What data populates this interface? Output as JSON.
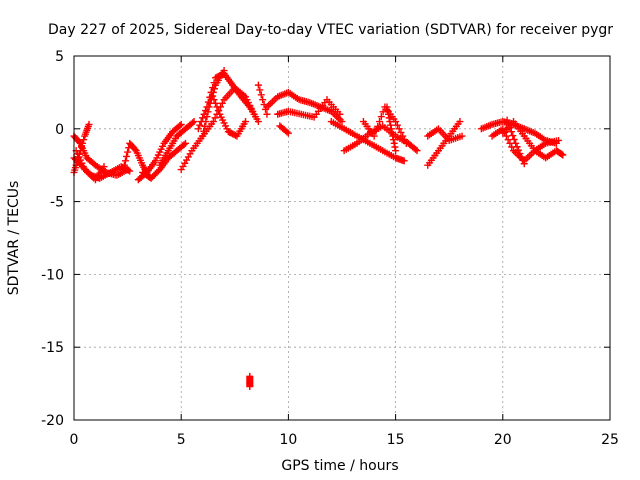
{
  "chart_data": {
    "type": "scatter",
    "title": "Day 227 of 2025, Sidereal Day-to-day VTEC variation (SDTVAR) for receiver pygr",
    "xlabel": "GPS time / hours",
    "ylabel": "SDTVAR / TECUs",
    "xlim": [
      0,
      25
    ],
    "ylim": [
      -20,
      5
    ],
    "xticks": [
      0,
      5,
      10,
      15,
      20,
      25
    ],
    "yticks": [
      5,
      0,
      -5,
      -10,
      -15,
      -20
    ],
    "grid": true,
    "marker": "+",
    "color": "#ff0000",
    "series": [
      {
        "name": "SDTVAR",
        "segments": [
          {
            "x": [
              0.0,
              0.3,
              0.6,
              1.0,
              1.5,
              2.0,
              2.5
            ],
            "y": [
              -0.5,
              -1.0,
              -2.0,
              -2.5,
              -3.0,
              -3.2,
              -2.8
            ]
          },
          {
            "x": [
              0.0,
              0.4,
              0.8,
              1.2,
              1.7,
              2.2,
              2.6
            ],
            "y": [
              -2.0,
              -2.6,
              -3.2,
              -3.4,
              -3.0,
              -2.6,
              -2.9
            ]
          },
          {
            "x": [
              0.0,
              0.2,
              0.5,
              0.7
            ],
            "y": [
              -3.0,
              -2.0,
              -0.5,
              0.3
            ]
          },
          {
            "x": [
              0.1,
              0.5,
              1.0,
              1.4
            ],
            "y": [
              -1.5,
              -2.8,
              -3.5,
              -2.6
            ]
          },
          {
            "x": [
              2.3,
              2.6,
              2.9,
              3.2,
              3.5
            ],
            "y": [
              -2.8,
              -1.0,
              -1.5,
              -2.5,
              -3.3
            ]
          },
          {
            "x": [
              3.0,
              3.4,
              3.8,
              4.2,
              4.6,
              5.0
            ],
            "y": [
              -3.5,
              -3.0,
              -2.2,
              -1.0,
              -0.2,
              0.3
            ]
          },
          {
            "x": [
              3.2,
              3.6,
              4.0,
              4.4,
              4.8,
              5.2
            ],
            "y": [
              -3.0,
              -3.4,
              -2.8,
              -2.0,
              -1.5,
              -1.0
            ]
          },
          {
            "x": [
              4.0,
              4.4,
              4.8,
              5.2,
              5.6
            ],
            "y": [
              -2.5,
              -1.5,
              -0.5,
              0.0,
              0.5
            ]
          },
          {
            "x": [
              5.0,
              5.5,
              6.0,
              6.3,
              6.6,
              7.0
            ],
            "y": [
              -2.8,
              -1.5,
              -0.5,
              1.5,
              3.0,
              4.0
            ]
          },
          {
            "x": [
              5.8,
              6.2,
              6.6,
              7.0,
              7.4,
              7.8,
              8.2,
              8.6
            ],
            "y": [
              0.0,
              1.5,
              3.5,
              3.8,
              3.0,
              2.2,
              1.5,
              0.5
            ]
          },
          {
            "x": [
              6.0,
              6.5,
              7.0,
              7.5,
              8.0,
              8.4
            ],
            "y": [
              -0.5,
              0.5,
              2.0,
              2.8,
              2.2,
              1.0
            ]
          },
          {
            "x": [
              6.4,
              6.8,
              7.2,
              7.6,
              8.0
            ],
            "y": [
              2.5,
              1.0,
              -0.2,
              -0.5,
              0.5
            ]
          },
          {
            "x": [
              8.2,
              8.2,
              8.2
            ],
            "y": [
              -17.0,
              -17.4,
              -17.7
            ]
          },
          {
            "x": [
              8.6,
              9.0
            ],
            "y": [
              3.0,
              1.0
            ]
          },
          {
            "x": [
              9.0,
              9.5,
              10.0,
              10.5,
              11.0,
              11.5,
              12.0,
              12.5
            ],
            "y": [
              1.5,
              2.2,
              2.5,
              2.0,
              1.8,
              1.5,
              1.2,
              0.5
            ]
          },
          {
            "x": [
              9.5,
              10.0,
              10.6,
              11.2,
              11.8,
              12.4
            ],
            "y": [
              1.0,
              1.2,
              1.0,
              0.8,
              2.0,
              1.0
            ]
          },
          {
            "x": [
              9.6,
              10.0
            ],
            "y": [
              0.2,
              -0.3
            ]
          },
          {
            "x": [
              12.0,
              12.6,
              13.2,
              13.8,
              14.4,
              15.0,
              15.4
            ],
            "y": [
              0.5,
              0.0,
              -0.5,
              -1.0,
              -1.5,
              -2.0,
              -2.2
            ]
          },
          {
            "x": [
              12.6,
              13.2,
              13.8,
              14.4,
              15.0,
              15.6,
              16.0
            ],
            "y": [
              -1.5,
              -1.0,
              -0.3,
              0.2,
              -0.5,
              -1.0,
              -1.5
            ]
          },
          {
            "x": [
              13.5,
              14.0,
              14.5,
              15.0,
              15.5
            ],
            "y": [
              0.5,
              -0.5,
              1.5,
              0.5,
              -1.0
            ]
          },
          {
            "x": [
              14.6,
              14.8,
              15.0
            ],
            "y": [
              1.5,
              0.0,
              -1.5
            ]
          },
          {
            "x": [
              16.5,
              17.0,
              17.5,
              18.0
            ],
            "y": [
              -2.5,
              -1.5,
              -0.5,
              0.5
            ]
          },
          {
            "x": [
              16.5,
              17.0,
              17.5,
              18.1
            ],
            "y": [
              -0.5,
              0.0,
              -0.8,
              -0.5
            ]
          },
          {
            "x": [
              19.0,
              19.5,
              20.0,
              20.5,
              21.0,
              21.5,
              22.0,
              22.5
            ],
            "y": [
              0.0,
              0.3,
              0.5,
              0.3,
              0.0,
              -0.3,
              -0.8,
              -1.0
            ]
          },
          {
            "x": [
              19.5,
              20.0,
              20.5,
              21.0,
              21.5,
              22.0,
              22.6
            ],
            "y": [
              -0.5,
              0.0,
              -1.5,
              -2.2,
              -1.5,
              -1.0,
              -0.8
            ]
          },
          {
            "x": [
              20.0,
              20.5,
              21.0,
              21.5,
              22.0,
              22.5,
              22.8
            ],
            "y": [
              -0.3,
              0.5,
              -0.5,
              -1.5,
              -2.0,
              -1.5,
              -1.8
            ]
          },
          {
            "x": [
              20.2,
              20.6,
              21.0
            ],
            "y": [
              0.6,
              -1.0,
              -2.4
            ]
          }
        ]
      }
    ]
  }
}
